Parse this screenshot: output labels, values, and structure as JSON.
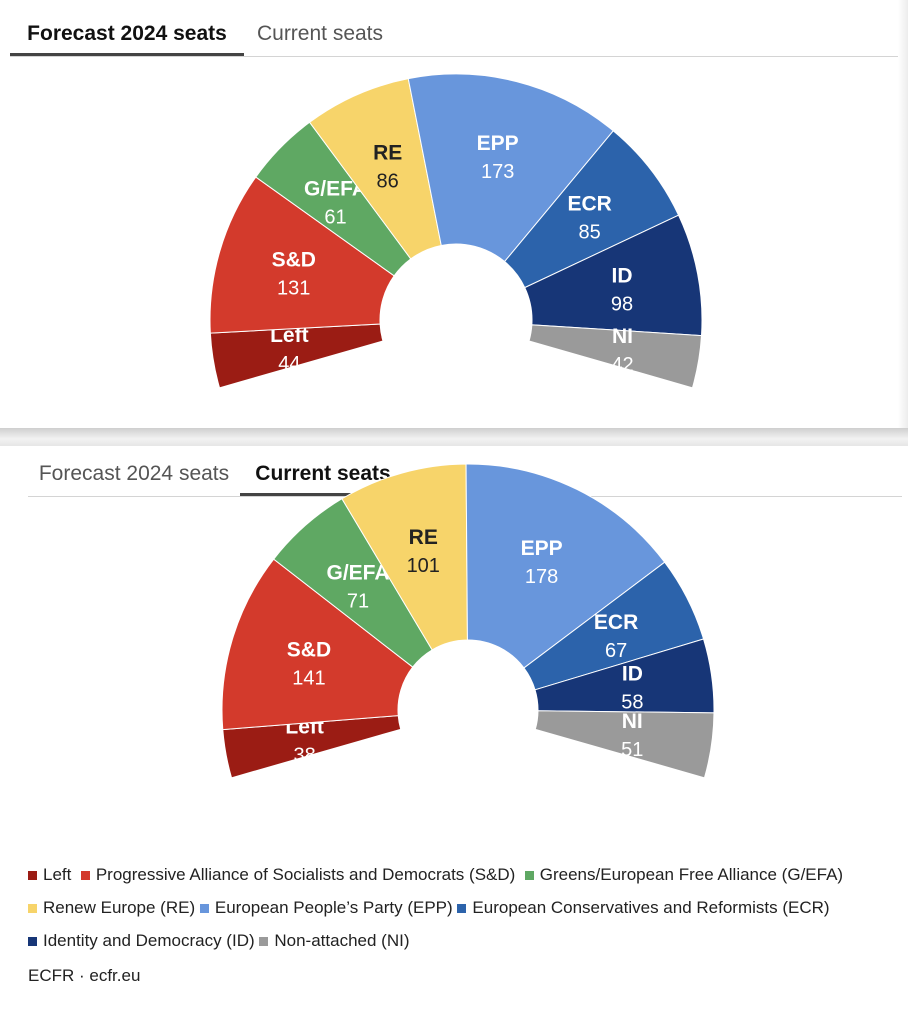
{
  "parties": [
    {
      "key": "Left",
      "label": "Left",
      "name": "Left",
      "color": "#9b1c14"
    },
    {
      "key": "SD",
      "label": "S&D",
      "name": "Progressive Alliance of Socialists and Democrats (S&D)",
      "color": "#d33a2c"
    },
    {
      "key": "GEFA",
      "label": "G/EFA",
      "name": "Greens/European Free Alliance (G/EFA)",
      "color": "#5fa863"
    },
    {
      "key": "RE",
      "label": "RE",
      "name": "Renew Europe (RE)",
      "color": "#f7d46a"
    },
    {
      "key": "EPP",
      "label": "EPP",
      "name": "European People’s Party (EPP)",
      "color": "#6896dc"
    },
    {
      "key": "ECR",
      "label": "ECR",
      "name": "European Conservatives and Reformists (ECR)",
      "color": "#2c63ab"
    },
    {
      "key": "ID",
      "label": "ID",
      "name": "Identity and Democracy (ID)",
      "color": "#173677"
    },
    {
      "key": "NI",
      "label": "NI",
      "name": "Non-attached (NI)",
      "color": "#9a9a9a"
    }
  ],
  "tabs": {
    "forecast_label": "Forecast 2024 seats",
    "current_label": "Current seats"
  },
  "source": "ECFR · ecfr.eu",
  "chart_data": [
    {
      "type": "pie",
      "chart_style": "parliament-semicircle",
      "categories": [
        "Left",
        "S&D",
        "G/EFA",
        "RE",
        "EPP",
        "ECR",
        "ID",
        "NI"
      ],
      "values": [
        44,
        131,
        61,
        86,
        173,
        85,
        98,
        42
      ],
      "colors": [
        "#9b1c14",
        "#d33a2c",
        "#5fa863",
        "#f7d46a",
        "#6896dc",
        "#2c63ab",
        "#173677",
        "#9a9a9a"
      ]
    },
    {
      "type": "pie",
      "chart_style": "parliament-semicircle",
      "categories": [
        "Left",
        "S&D",
        "G/EFA",
        "RE",
        "EPP",
        "ECR",
        "ID",
        "NI"
      ],
      "values": [
        38,
        141,
        71,
        101,
        178,
        67,
        58,
        51
      ],
      "colors": [
        "#9b1c14",
        "#d33a2c",
        "#5fa863",
        "#f7d46a",
        "#6896dc",
        "#2c63ab",
        "#173677",
        "#9a9a9a"
      ]
    }
  ]
}
